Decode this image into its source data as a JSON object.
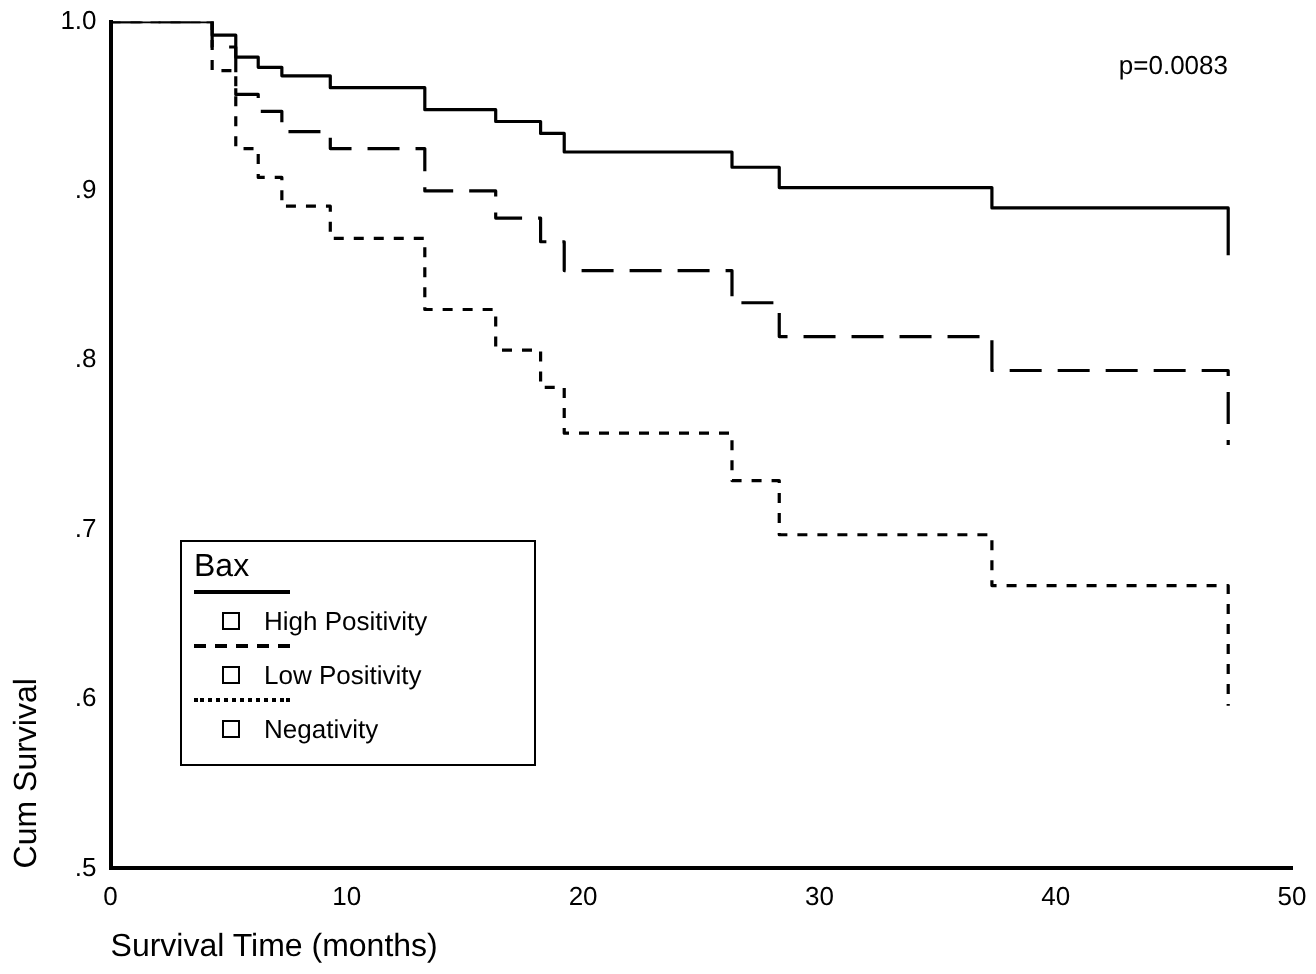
{
  "chart_data": {
    "type": "step",
    "xlabel": "Survival Time (months)",
    "ylabel": "Cum Survival",
    "legend_title": "Bax",
    "legend": "bottom left",
    "grid": false,
    "marker": "none",
    "xlim": [
      0,
      50
    ],
    "xticks": [
      0,
      10,
      20,
      30,
      40,
      50
    ],
    "ylim": [
      0.5,
      1.0
    ],
    "yticks": [
      {
        "value": 0.5,
        "label": ".5"
      },
      {
        "value": 0.6,
        "label": ".6"
      },
      {
        "value": 0.7,
        "label": ".7"
      },
      {
        "value": 0.8,
        "label": ".8"
      },
      {
        "value": 0.9,
        "label": ".9"
      },
      {
        "value": 1.0,
        "label": "1.0"
      }
    ],
    "annotations": [
      "p=0.0083"
    ],
    "series": [
      {
        "name": "High Positivity",
        "color": "#000000",
        "line_style": "solid",
        "x": [
          0,
          4.3,
          5.3,
          6.25,
          7.25,
          9.3,
          13.3,
          16.3,
          18.2,
          19.2,
          26.3,
          28.3,
          37.3,
          47.3,
          47.3
        ],
        "values": [
          1.0,
          0.992,
          0.979,
          0.973,
          0.968,
          0.961,
          0.948,
          0.941,
          0.934,
          0.923,
          0.914,
          0.902,
          0.89,
          0.89,
          0.862
        ]
      },
      {
        "name": "Low Positivity",
        "color": "#000000",
        "line_style": "dashed",
        "x": [
          0,
          4.3,
          5.3,
          6.25,
          7.25,
          9.3,
          13.3,
          16.3,
          18.2,
          19.2,
          26.3,
          28.3,
          37.3,
          47.3,
          47.3
        ],
        "values": [
          1.0,
          0.985,
          0.957,
          0.947,
          0.935,
          0.925,
          0.9,
          0.884,
          0.87,
          0.853,
          0.834,
          0.814,
          0.794,
          0.794,
          0.75
        ]
      },
      {
        "name": "Negativity",
        "color": "#000000",
        "line_style": "dotted",
        "x": [
          0,
          4.3,
          5.3,
          6.25,
          7.25,
          9.3,
          13.3,
          16.3,
          18.2,
          19.2,
          26.3,
          28.3,
          37.3,
          47.3,
          47.3
        ],
        "values": [
          1.0,
          0.971,
          0.925,
          0.908,
          0.891,
          0.872,
          0.83,
          0.806,
          0.784,
          0.757,
          0.729,
          0.697,
          0.667,
          0.667,
          0.596
        ]
      }
    ]
  }
}
